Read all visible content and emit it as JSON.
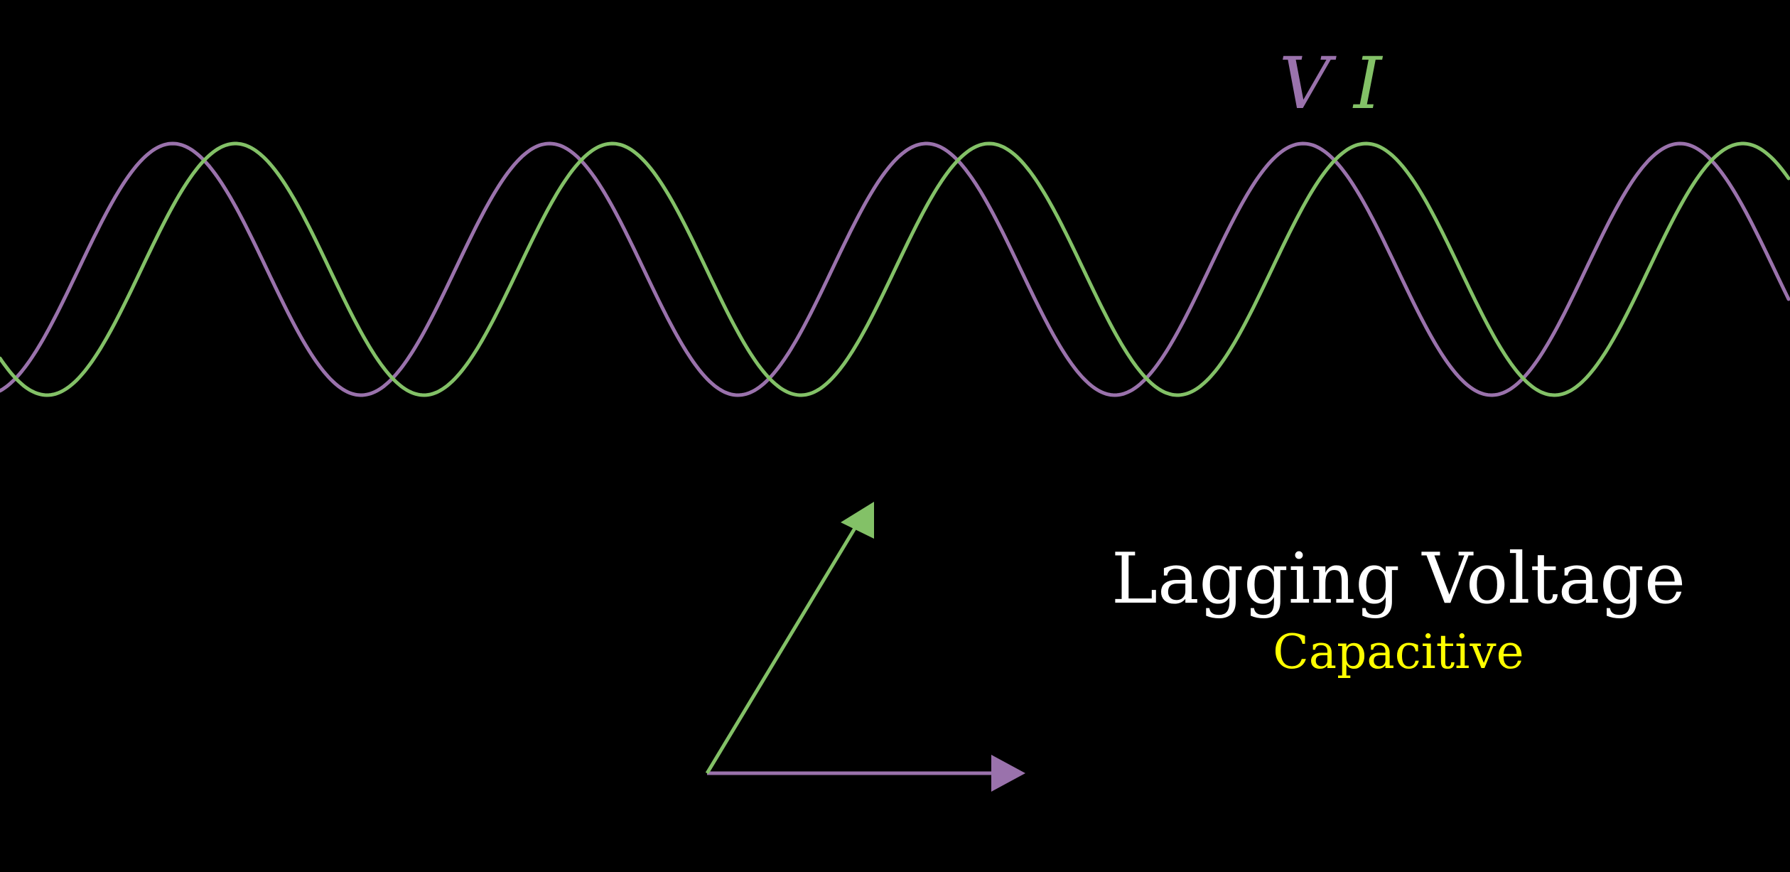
{
  "labels": {
    "voltage_symbol": "V",
    "current_symbol": "I",
    "title": "Lagging Voltage",
    "subtitle": "Capacitive"
  },
  "colors": {
    "background": "#000000",
    "voltage": "#9A72AC",
    "current": "#83C167",
    "title": "#FFFFFF",
    "subtitle": "#FFFF00"
  },
  "waves": {
    "cycles_visible": 4.75,
    "phase_difference_deg": 60,
    "leading_signal": "current"
  },
  "phasors": {
    "voltage_angle_deg": 0,
    "current_angle_deg": 60
  }
}
